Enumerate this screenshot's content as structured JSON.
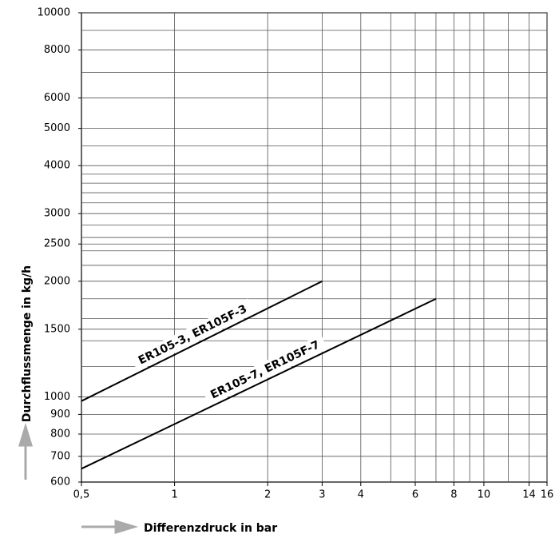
{
  "chart_data": {
    "type": "line",
    "xlabel": "Differenzdruck in bar",
    "ylabel": "Durchflussmenge in kg/h",
    "xscale": "log",
    "yscale": "log",
    "xlim": [
      0.5,
      16
    ],
    "ylim": [
      600,
      10000
    ],
    "xticks": [
      {
        "value": 0.5,
        "label": "0,5"
      },
      1,
      2,
      3,
      4,
      6,
      8,
      10,
      14,
      16
    ],
    "yticks": [
      600,
      700,
      800,
      900,
      1000,
      1500,
      2000,
      2500,
      3000,
      4000,
      5000,
      6000,
      8000,
      10000
    ],
    "xgrid": [
      1,
      2,
      3,
      4,
      5,
      6,
      7,
      8,
      9,
      10,
      12,
      14,
      16
    ],
    "ygrid": [
      700,
      800,
      900,
      1000,
      1200,
      1400,
      1500,
      1600,
      1800,
      2000,
      2200,
      2400,
      2500,
      2600,
      2800,
      3000,
      3200,
      3400,
      3600,
      3800,
      4000,
      4500,
      5000,
      6000,
      7000,
      8000,
      9000,
      10000
    ],
    "series": [
      {
        "name": "ER105-3, ER105F-3",
        "color": "#000000",
        "x": [
          0.5,
          3
        ],
        "values": [
          975,
          2000
        ]
      },
      {
        "name": "ER105-7, ER105F-7",
        "color": "#000000",
        "x": [
          0.5,
          7
        ],
        "values": [
          650,
          1800
        ]
      }
    ]
  }
}
